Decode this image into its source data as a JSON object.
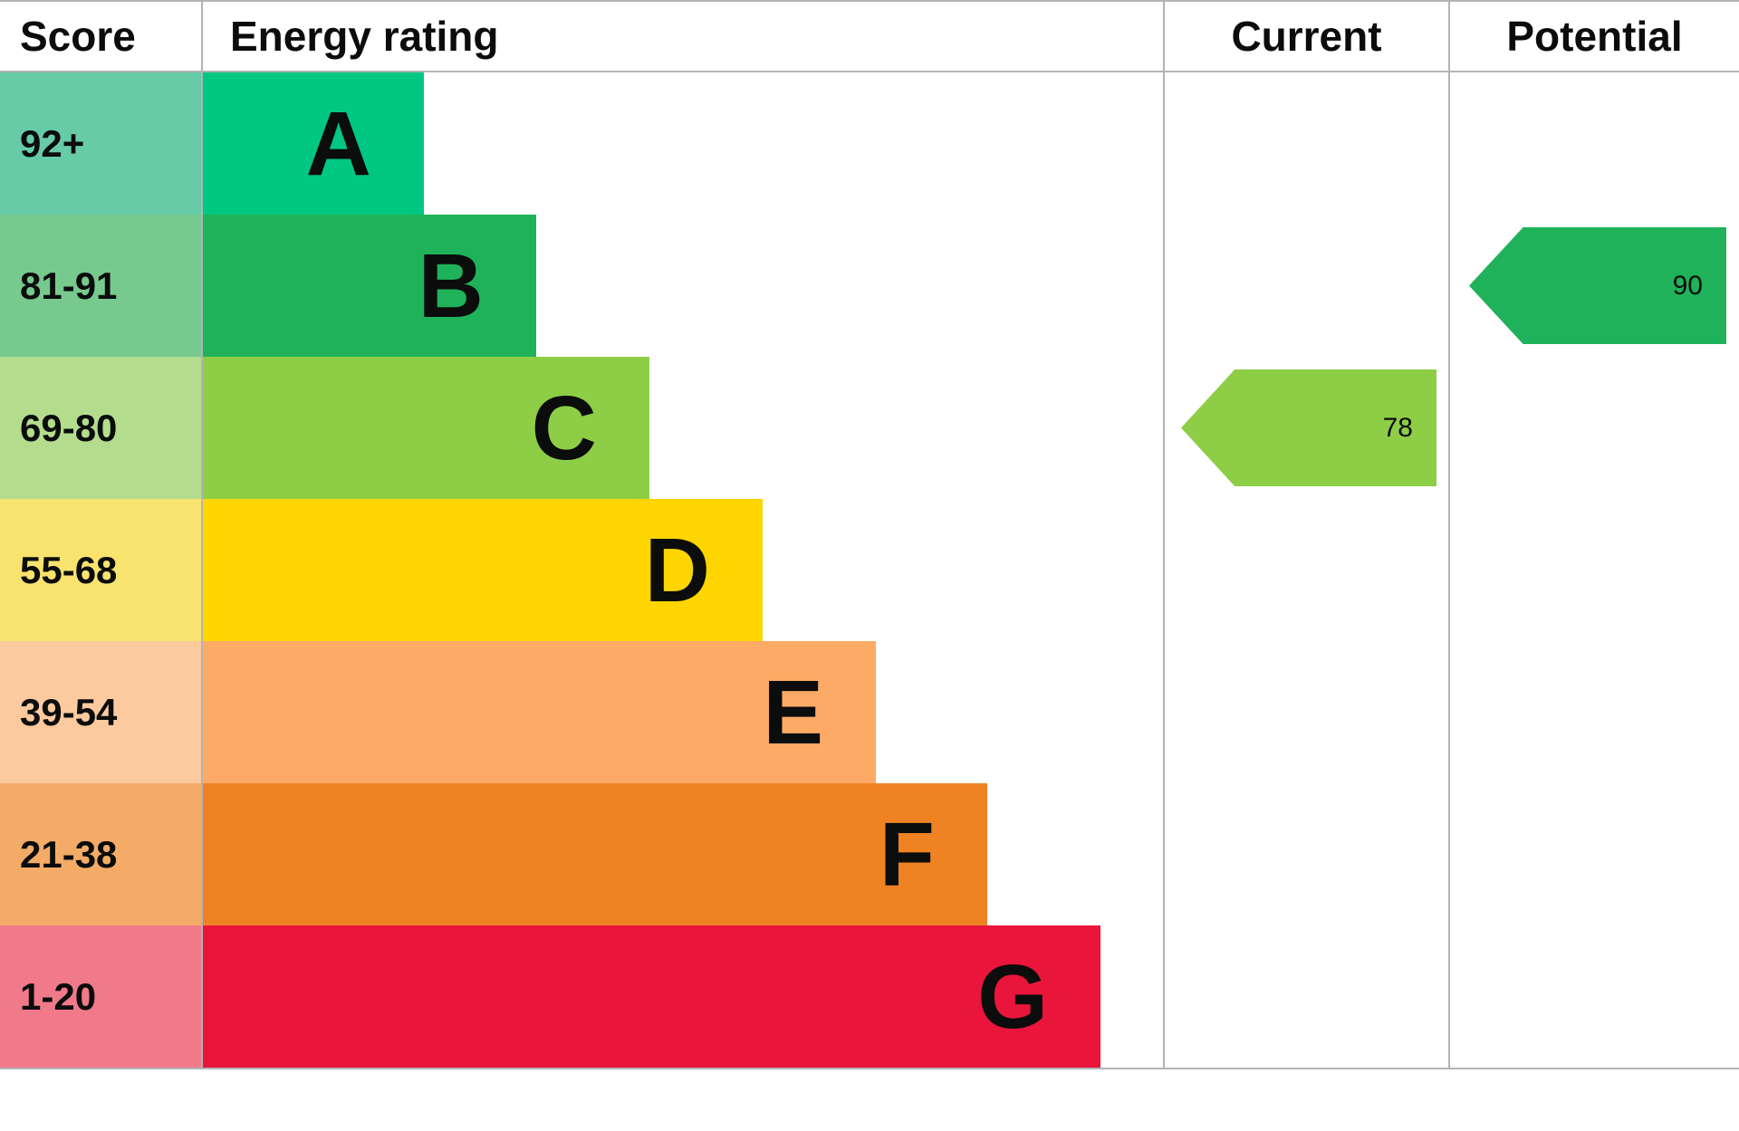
{
  "header": {
    "score_label": "Score",
    "energy_rating_label": "Energy rating",
    "current_label": "Current",
    "potential_label": "Potential"
  },
  "chart_data": {
    "type": "bar",
    "title": "Energy efficiency rating chart (EPC)",
    "xlabel": "Energy rating",
    "ylabel": "Score",
    "legend_position": "none",
    "grid": false,
    "bands": [
      {
        "letter": "A",
        "score_range": "92+",
        "bar_color": "#00c781",
        "score_tint": "#66cba6",
        "width_pct": 23.0
      },
      {
        "letter": "B",
        "score_range": "81-91",
        "bar_color": "#1fb25a",
        "score_tint": "#77c98e",
        "width_pct": 34.7
      },
      {
        "letter": "C",
        "score_range": "69-80",
        "bar_color": "#8dce46",
        "score_tint": "#b3dd8d",
        "width_pct": 46.5
      },
      {
        "letter": "D",
        "score_range": "55-68",
        "bar_color": "#ffd500",
        "score_tint": "#f9e36f",
        "width_pct": 58.3
      },
      {
        "letter": "E",
        "score_range": "39-54",
        "bar_color": "#fcaa65",
        "score_tint": "#fcca9f",
        "width_pct": 70.1
      },
      {
        "letter": "F",
        "score_range": "21-38",
        "bar_color": "#ef8323",
        "score_tint": "#f3ab67",
        "width_pct": 81.7
      },
      {
        "letter": "G",
        "score_range": "1-20",
        "bar_color": "#e9153b",
        "score_tint": "#f07a8a",
        "width_pct": 93.5
      }
    ],
    "markers": [
      {
        "name": "current",
        "label": "Current",
        "value": 78,
        "band": "C",
        "color": "#8dce46"
      },
      {
        "name": "potential",
        "label": "Potential",
        "value": 90,
        "band": "B",
        "color": "#1fb25a"
      }
    ]
  }
}
